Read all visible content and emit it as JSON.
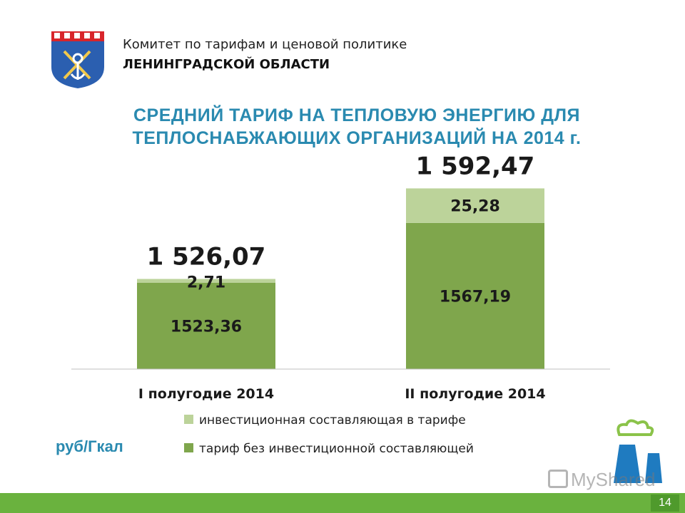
{
  "header": {
    "org_line1": "Комитет по тарифам и ценовой политике",
    "org_line2": "ЛЕНИНГРАДСКОЙ ОБЛАСТИ",
    "emblem_icon": "leningrad-oblast-coat-of-arms"
  },
  "title": {
    "line1": "СРЕДНИЙ ТАРИФ НА ТЕПЛОВУЮ ЭНЕРГИЮ ДЛЯ",
    "line2": "ТЕПЛОСНАБЖАЮЩИХ ОРГАНИЗАЦИЙ НА 2014 г."
  },
  "unit_label": "руб/Гкал",
  "colors": {
    "base": "#7fa64c",
    "investment": "#bcd39a",
    "title": "#2a8ab0",
    "footer": "#6ab23e"
  },
  "chart_data": {
    "type": "bar",
    "stacked": true,
    "categories": [
      "I полугодие 2014",
      "II полугодие 2014"
    ],
    "series": [
      {
        "name": "тариф без инвестиционной составляющей",
        "values": [
          1523.36,
          1567.19
        ],
        "labels": [
          "1523,36",
          "1567,19"
        ],
        "color": "#7fa64c"
      },
      {
        "name": "инвестиционная составляющая в тарифе",
        "values": [
          2.71,
          25.28
        ],
        "labels": [
          "2,71",
          "25,28"
        ],
        "color": "#bcd39a"
      }
    ],
    "totals": [
      1526.07,
      1592.47
    ],
    "total_labels": [
      "1 526,07",
      "1 592,47"
    ],
    "legend_position": "bottom",
    "grid": false,
    "ylabel": "руб/Гкал",
    "axis_break": true,
    "visible_ylim": [
      1460,
      1600
    ]
  },
  "legend": [
    {
      "label": "инвестиционная составляющая в тарифе",
      "color": "#bcd39a"
    },
    {
      "label": "тариф без инвестиционной составляющей",
      "color": "#7fa64c"
    }
  ],
  "watermark": "MyShared",
  "page_number": "14"
}
